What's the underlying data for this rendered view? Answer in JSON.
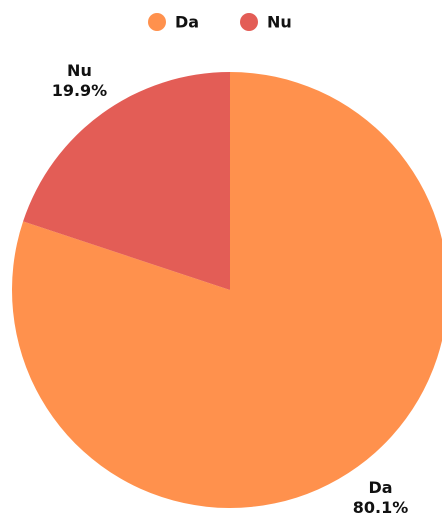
{
  "chart_data": {
    "type": "pie",
    "categories": [
      "Da",
      "Nu"
    ],
    "values": [
      80.1,
      19.9
    ],
    "value_labels": [
      "80.1%",
      "19.9%"
    ],
    "colors": [
      "#ff914d",
      "#e35d56"
    ],
    "legend": "top"
  }
}
